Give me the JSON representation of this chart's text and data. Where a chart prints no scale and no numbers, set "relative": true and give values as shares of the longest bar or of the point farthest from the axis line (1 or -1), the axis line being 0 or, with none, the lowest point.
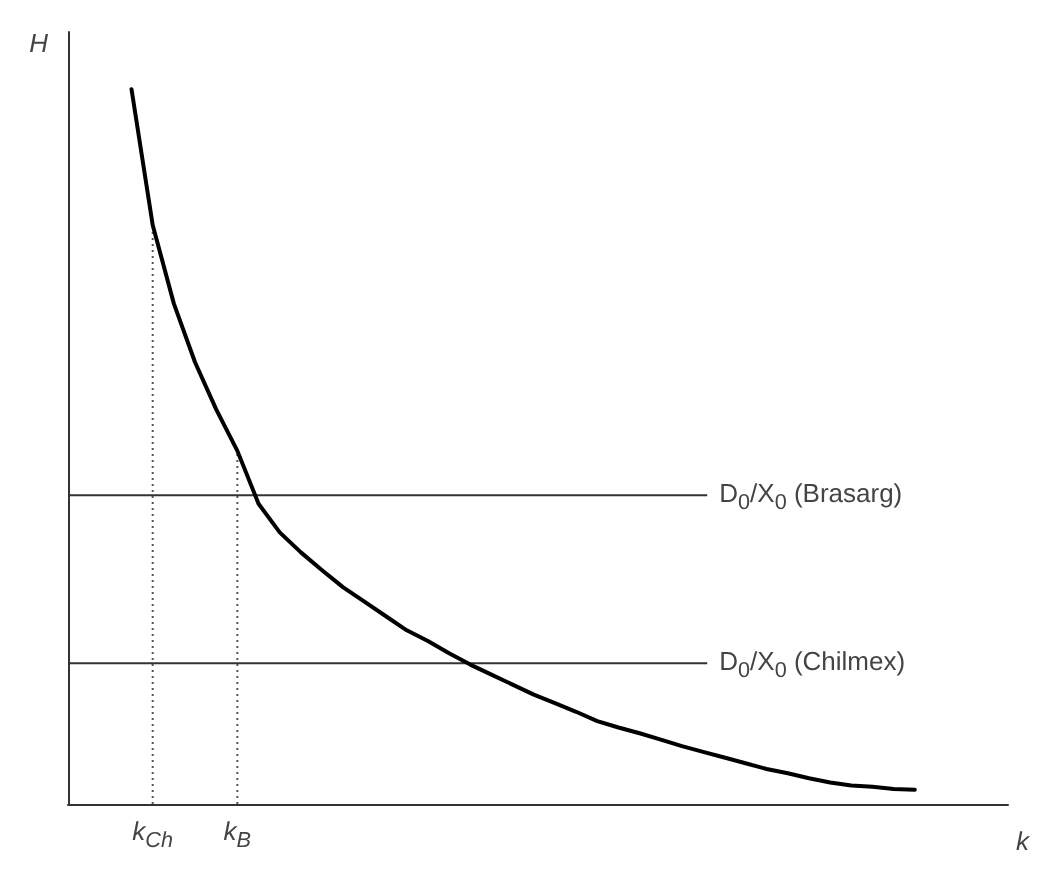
{
  "chart_data": {
    "type": "line",
    "relative": true,
    "xlabel": "k",
    "ylabel": "H",
    "tick_labels": "x",
    "grid": false,
    "marker": "none",
    "line_style": "solid",
    "categories": [
      null,
      "k$_{Ch}$",
      null,
      null,
      null,
      "k$_{B}$",
      null,
      null,
      null,
      null,
      null,
      null,
      null,
      null,
      null,
      null,
      null,
      null,
      null,
      null,
      null,
      null,
      null,
      null,
      null,
      null,
      null,
      null,
      null,
      null,
      null,
      null,
      null,
      null,
      null,
      null,
      null,
      null
    ],
    "series": [
      {
        "color": "#000000",
        "values": [
          1.0,
          0.81,
          0.7,
          0.618,
          0.552,
          0.494,
          0.42,
          0.38,
          0.352,
          0.327,
          0.303,
          0.283,
          0.263,
          0.243,
          0.228,
          0.211,
          0.195,
          0.181,
          0.167,
          0.153,
          0.141,
          0.129,
          0.116,
          0.107,
          0.099,
          0.09,
          0.081,
          0.073,
          0.065,
          0.057,
          0.049,
          0.043,
          0.036,
          0.03,
          0.026,
          0.024,
          0.021,
          0.02
        ]
      }
    ],
    "ref_lines": [
      {
        "axis": "y",
        "value": 0.432,
        "label": "D$_{0}$/X$_{0}$ (Brasarg)",
        "color": "#333333",
        "line_style": "solid"
      },
      {
        "axis": "y",
        "value": 0.197,
        "label": "D$_{0}$/X$_{0}$ (Chilmex)",
        "color": "#333333",
        "line_style": "solid"
      },
      {
        "axis": "x",
        "value": "k$_{Ch}$",
        "color": "#555555",
        "line_style": "dotted"
      },
      {
        "axis": "x",
        "value": "k$_{B}$",
        "color": "#555555",
        "line_style": "dotted"
      }
    ]
  }
}
